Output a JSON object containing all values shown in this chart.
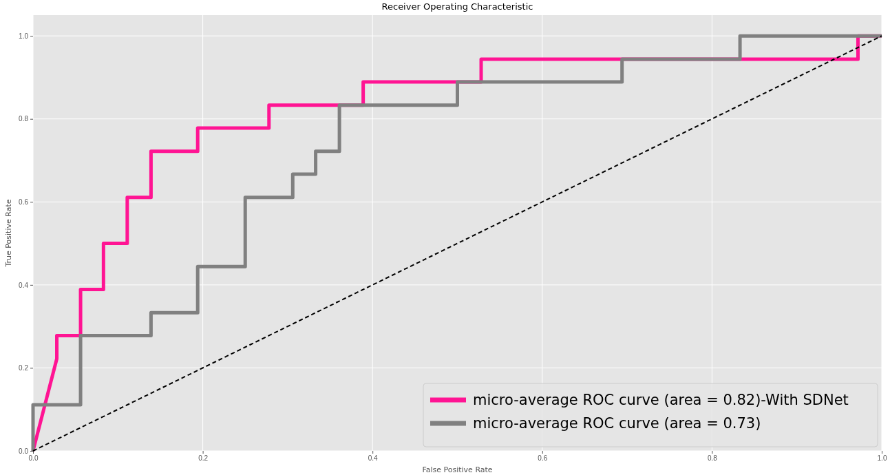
{
  "chart_data": {
    "type": "line",
    "title": "Receiver Operating Characteristic",
    "xlabel": "False Positive Rate",
    "ylabel": "True Positive Rate",
    "xlim": [
      0,
      1
    ],
    "ylim": [
      0,
      1.05
    ],
    "xticks": [
      {
        "value": 0,
        "label": "0.0"
      },
      {
        "value": 0.2,
        "label": "0.2"
      },
      {
        "value": 0.4,
        "label": "0.4"
      },
      {
        "value": 0.6,
        "label": "0.6"
      },
      {
        "value": 0.8,
        "label": "0.8"
      },
      {
        "value": 1,
        "label": "1.0"
      }
    ],
    "yticks": [
      {
        "value": 0,
        "label": "0.0"
      },
      {
        "value": 0.2,
        "label": "0.2"
      },
      {
        "value": 0.4,
        "label": "0.4"
      },
      {
        "value": 0.6,
        "label": "0.6"
      },
      {
        "value": 0.8,
        "label": "0.8"
      },
      {
        "value": 1,
        "label": "1.0"
      }
    ],
    "grid": true,
    "legend": "bottom right",
    "marker": "none",
    "series": [
      {
        "name": "micro-average ROC curve (area = 0.82)-With SDNet",
        "color": "#ff1493",
        "line_style": "solid",
        "x": [
          0,
          0.028,
          0.028,
          0.056,
          0.056,
          0.083,
          0.083,
          0.111,
          0.111,
          0.139,
          0.139,
          0.194,
          0.194,
          0.278,
          0.278,
          0.389,
          0.389,
          0.528,
          0.528,
          0.972,
          0.972,
          1
        ],
        "values": [
          0,
          0.222,
          0.278,
          0.278,
          0.389,
          0.389,
          0.5,
          0.5,
          0.611,
          0.611,
          0.722,
          0.722,
          0.778,
          0.778,
          0.833,
          0.833,
          0.889,
          0.889,
          0.944,
          0.944,
          1,
          1
        ]
      },
      {
        "name": "micro-average ROC curve (area = 0.73)",
        "color": "#808080",
        "line_style": "solid",
        "x": [
          0,
          0,
          0.056,
          0.056,
          0.139,
          0.139,
          0.194,
          0.194,
          0.25,
          0.25,
          0.306,
          0.306,
          0.333,
          0.333,
          0.361,
          0.361,
          0.5,
          0.5,
          0.694,
          0.694,
          0.833,
          0.833,
          1
        ],
        "values": [
          0,
          0.111,
          0.111,
          0.278,
          0.278,
          0.333,
          0.333,
          0.444,
          0.444,
          0.611,
          0.611,
          0.667,
          0.667,
          0.722,
          0.722,
          0.833,
          0.833,
          0.889,
          0.889,
          0.944,
          0.944,
          1,
          1
        ]
      },
      {
        "color": "#000000",
        "line_style": "dashed",
        "x": [
          0,
          1
        ],
        "values": [
          0,
          1
        ]
      }
    ]
  }
}
